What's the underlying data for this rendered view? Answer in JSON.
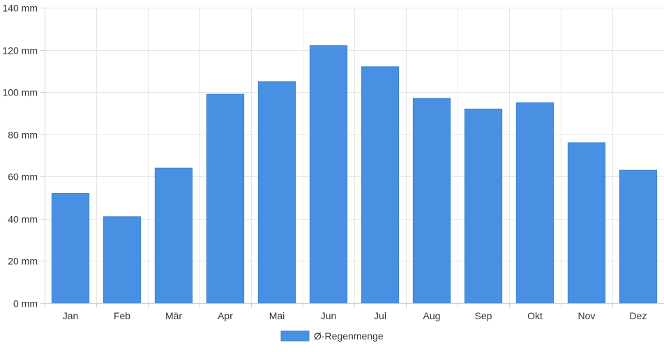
{
  "chart_data": {
    "type": "bar",
    "categories": [
      "Jan",
      "Feb",
      "Mär",
      "Apr",
      "Mai",
      "Jun",
      "Jul",
      "Aug",
      "Sep",
      "Okt",
      "Nov",
      "Dez"
    ],
    "series": [
      {
        "name": "Ø-Regenmenge",
        "values": [
          52,
          41,
          64,
          99,
          105,
          122,
          112,
          97,
          92,
          95,
          76,
          63
        ],
        "color": "#4a90e2"
      }
    ],
    "y_unit": "mm",
    "ylim": [
      0,
      140
    ],
    "y_ticks": [
      0,
      20,
      40,
      60,
      80,
      100,
      120,
      140
    ],
    "y_tick_labels": [
      "0 mm",
      "20 mm",
      "40 mm",
      "60 mm",
      "80 mm",
      "100 mm",
      "120 mm",
      "140 mm"
    ],
    "grid": true,
    "legend_position": "bottom-center"
  }
}
